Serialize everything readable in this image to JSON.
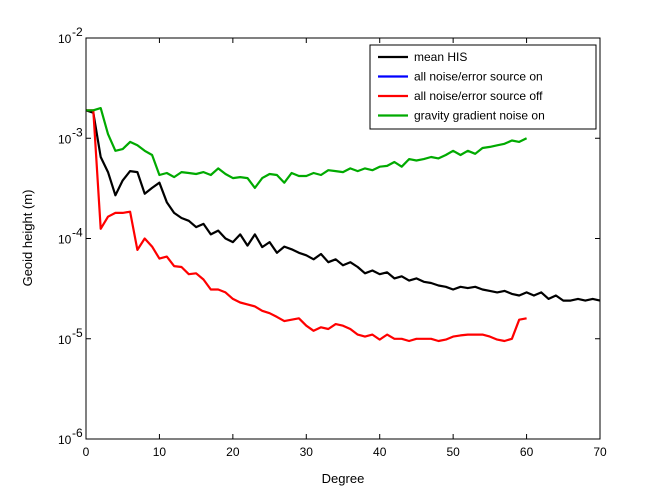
{
  "chart_data": {
    "type": "line",
    "xlabel": "Degree",
    "ylabel": "Geoid height (m)",
    "xlim": [
      0,
      70
    ],
    "ylim": [
      1e-06,
      0.01
    ],
    "yscale": "log",
    "grid": false,
    "legend_position": "top-right",
    "x_ticks": [
      0,
      10,
      20,
      30,
      40,
      50,
      60,
      70
    ],
    "x_tick_labels": [
      "0",
      "10",
      "20",
      "30",
      "40",
      "50",
      "60",
      "70"
    ],
    "y_ticks": [
      1e-06,
      1e-05,
      0.0001,
      0.001,
      0.01
    ],
    "y_tick_labels": [
      {
        "base": "10",
        "exp": "-6"
      },
      {
        "base": "10",
        "exp": "-5"
      },
      {
        "base": "10",
        "exp": "-4"
      },
      {
        "base": "10",
        "exp": "-3"
      },
      {
        "base": "10",
        "exp": "-2"
      }
    ],
    "series": [
      {
        "name": "mean HIS",
        "color": "#000000",
        "x": [
          0,
          1,
          2,
          3,
          4,
          5,
          6,
          7,
          8,
          9,
          10,
          11,
          12,
          13,
          14,
          15,
          16,
          17,
          18,
          19,
          20,
          21,
          22,
          23,
          24,
          25,
          26,
          27,
          28,
          29,
          30,
          31,
          32,
          33,
          34,
          35,
          36,
          37,
          38,
          39,
          40,
          41,
          42,
          43,
          44,
          45,
          46,
          47,
          48,
          49,
          50,
          51,
          52,
          53,
          54,
          55,
          56,
          57,
          58,
          59,
          60,
          61,
          62,
          63,
          64,
          65,
          66,
          67,
          68,
          69,
          70
        ],
        "y": [
          0.0019,
          0.0018,
          0.00065,
          0.00046,
          0.00027,
          0.00038,
          0.00047,
          0.00046,
          0.00028,
          0.00032,
          0.00036,
          0.00023,
          0.00018,
          0.00016,
          0.00015,
          0.00013,
          0.00014,
          0.00011,
          0.00012,
          0.0001,
          9.2e-05,
          0.00011,
          8.5e-05,
          0.00011,
          8.2e-05,
          9.2e-05,
          7.2e-05,
          8.3e-05,
          7.8e-05,
          7.2e-05,
          6.8e-05,
          6.2e-05,
          7e-05,
          5.8e-05,
          6.2e-05,
          5.4e-05,
          5.8e-05,
          5.2e-05,
          4.5e-05,
          4.8e-05,
          4.4e-05,
          4.6e-05,
          4e-05,
          4.2e-05,
          3.8e-05,
          4e-05,
          3.7e-05,
          3.6e-05,
          3.4e-05,
          3.3e-05,
          3.1e-05,
          3.3e-05,
          3.2e-05,
          3.3e-05,
          3.1e-05,
          3e-05,
          2.9e-05,
          3e-05,
          2.8e-05,
          2.7e-05,
          2.9e-05,
          2.7e-05,
          2.9e-05,
          2.5e-05,
          2.7e-05,
          2.4e-05,
          2.4e-05,
          2.5e-05,
          2.4e-05,
          2.5e-05,
          2.4e-05
        ]
      },
      {
        "name": "all noise/error source on",
        "color": "#0000ff",
        "x": [],
        "y": []
      },
      {
        "name": "all noise/error source off",
        "color": "#ff0000",
        "x": [
          0,
          1,
          2,
          3,
          4,
          5,
          6,
          7,
          8,
          9,
          10,
          11,
          12,
          13,
          14,
          15,
          16,
          17,
          18,
          19,
          20,
          21,
          22,
          23,
          24,
          25,
          26,
          27,
          28,
          29,
          30,
          31,
          32,
          33,
          34,
          35,
          36,
          37,
          38,
          39,
          40,
          41,
          42,
          43,
          44,
          45,
          46,
          47,
          48,
          49,
          50,
          51,
          52,
          53,
          54,
          55,
          56,
          57,
          58,
          59,
          60
        ],
        "y": [
          0.0019,
          0.0019,
          0.000125,
          0.000165,
          0.00018,
          0.00018,
          0.000185,
          7.7e-05,
          0.0001,
          8.3e-05,
          6.3e-05,
          6.6e-05,
          5.3e-05,
          5.2e-05,
          4.4e-05,
          4.5e-05,
          3.9e-05,
          3.1e-05,
          3.1e-05,
          2.9e-05,
          2.5e-05,
          2.3e-05,
          2.2e-05,
          2.1e-05,
          1.9e-05,
          1.8e-05,
          1.65e-05,
          1.5e-05,
          1.55e-05,
          1.6e-05,
          1.35e-05,
          1.2e-05,
          1.3e-05,
          1.25e-05,
          1.4e-05,
          1.35e-05,
          1.25e-05,
          1.1e-05,
          1.05e-05,
          1.1e-05,
          9.8e-06,
          1.1e-05,
          1e-05,
          1e-05,
          9.5e-06,
          1e-05,
          1e-05,
          1e-05,
          9.5e-06,
          9.8e-06,
          1.05e-05,
          1.08e-05,
          1.1e-05,
          1.1e-05,
          1.1e-05,
          1.05e-05,
          9.8e-06,
          9.5e-06,
          1e-05,
          1.55e-05,
          1.6e-05
        ]
      },
      {
        "name": "gravity gradient noise on",
        "color": "#00aa00",
        "x": [
          0,
          1,
          2,
          3,
          4,
          5,
          6,
          7,
          8,
          9,
          10,
          11,
          12,
          13,
          14,
          15,
          16,
          17,
          18,
          19,
          20,
          21,
          22,
          23,
          24,
          25,
          26,
          27,
          28,
          29,
          30,
          31,
          32,
          33,
          34,
          35,
          36,
          37,
          38,
          39,
          40,
          41,
          42,
          43,
          44,
          45,
          46,
          47,
          48,
          49,
          50,
          51,
          52,
          53,
          54,
          55,
          56,
          57,
          58,
          59,
          60
        ],
        "y": [
          0.0019,
          0.0019,
          0.002,
          0.0011,
          0.00075,
          0.00078,
          0.00092,
          0.00085,
          0.00075,
          0.00068,
          0.00043,
          0.00045,
          0.00041,
          0.00046,
          0.00045,
          0.00044,
          0.00046,
          0.00043,
          0.0005,
          0.00044,
          0.0004,
          0.00041,
          0.0004,
          0.00032,
          0.0004,
          0.00044,
          0.00043,
          0.00036,
          0.00045,
          0.00042,
          0.00042,
          0.00045,
          0.00043,
          0.00048,
          0.00047,
          0.00046,
          0.0005,
          0.00047,
          0.0005,
          0.00048,
          0.00052,
          0.00053,
          0.00058,
          0.00052,
          0.00062,
          0.0006,
          0.00062,
          0.00065,
          0.00063,
          0.00068,
          0.00075,
          0.00068,
          0.00075,
          0.0007,
          0.0008,
          0.00082,
          0.00085,
          0.00088,
          0.00095,
          0.00092,
          0.001
        ]
      }
    ]
  }
}
